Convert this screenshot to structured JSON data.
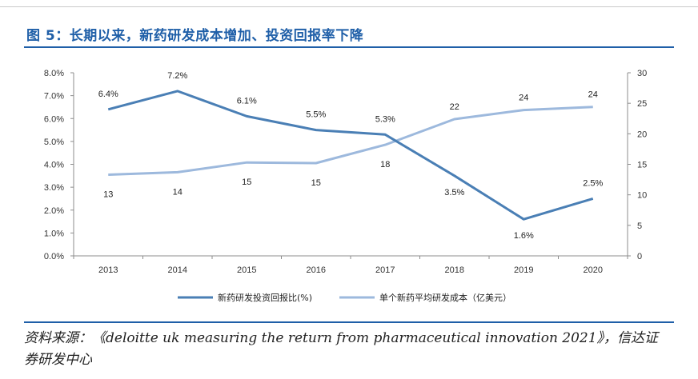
{
  "figure": {
    "title": "图 5：长期以来，新药研发成本增加、投资回报率下降",
    "source": "资料来源：《deloitte uk measuring the return from pharmaceutical innovation 2021》，信达证券研发中心"
  },
  "chart_data": {
    "type": "line",
    "categories": [
      "2013",
      "2014",
      "2015",
      "2016",
      "2017",
      "2018",
      "2019",
      "2020"
    ],
    "series": [
      {
        "name": "新药研发投资回报比(%)",
        "axis": "left",
        "color": "#4a7fb5",
        "values": [
          6.4,
          7.2,
          6.1,
          5.5,
          5.3,
          3.5,
          1.6,
          2.5
        ],
        "labels": [
          "6.4%",
          "7.2%",
          "6.1%",
          "5.5%",
          "5.3%",
          "3.5%",
          "1.6%",
          "2.5%"
        ]
      },
      {
        "name": "单个新药平均研发成本（亿美元）",
        "axis": "right",
        "color": "#9db9dd",
        "values": [
          13.3,
          13.7,
          15.3,
          15.2,
          18.2,
          22.4,
          23.9,
          24.4
        ],
        "labels": [
          "13",
          "14",
          "15",
          "15",
          "18",
          "22",
          "24",
          "24"
        ]
      }
    ],
    "y_left": {
      "min": 0,
      "max": 8,
      "step": 1,
      "ticks": [
        "0.0%",
        "1.0%",
        "2.0%",
        "3.0%",
        "4.0%",
        "5.0%",
        "6.0%",
        "7.0%",
        "8.0%"
      ]
    },
    "y_right": {
      "min": 0,
      "max": 30,
      "step": 5,
      "ticks": [
        "0",
        "5",
        "10",
        "15",
        "20",
        "25",
        "30"
      ]
    },
    "legend_position": "bottom-center",
    "grid": false
  }
}
